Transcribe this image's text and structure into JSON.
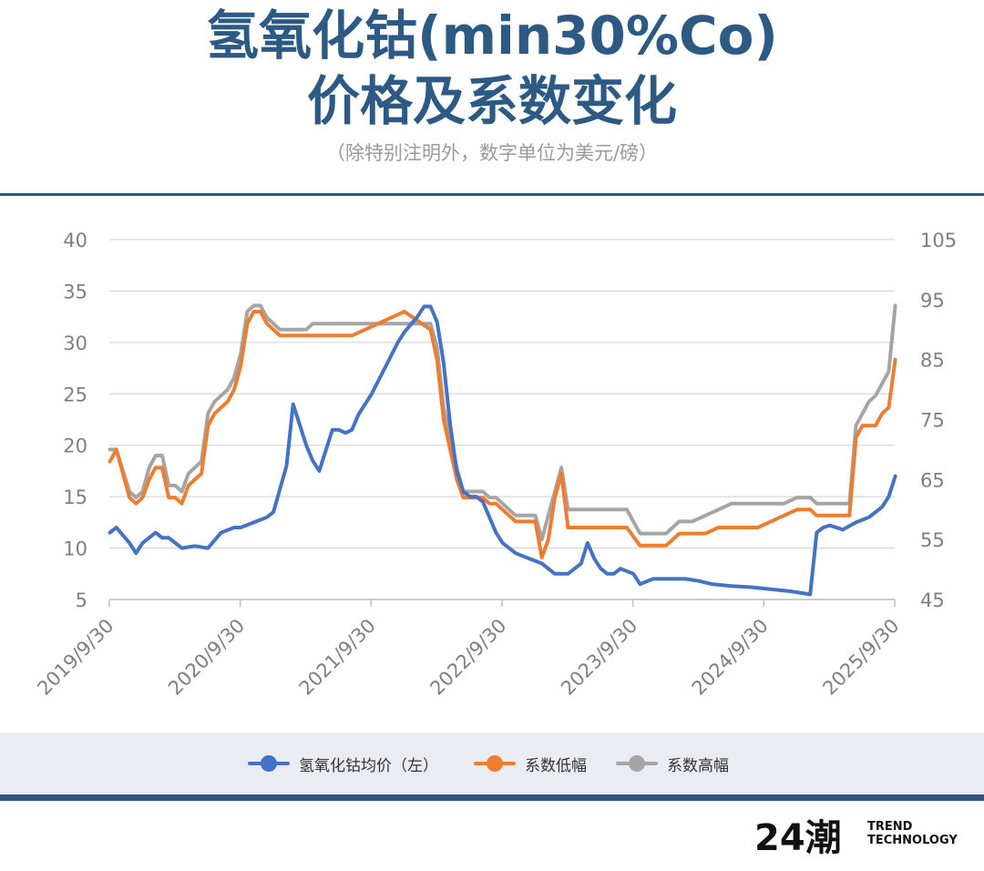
{
  "header": {
    "title_line1": "氢氧化钴(min30%Co)",
    "title_line2": "价格及系数变化",
    "subtitle": "（除特别注明外，数字单位为美元/磅）"
  },
  "brand": {
    "mark": "24潮",
    "line1": "TREND",
    "line2": "TECHNOLOGY"
  },
  "colors": {
    "accent": "#2f5780",
    "blue": "#4472c4",
    "orange": "#ed7d31",
    "gray": "#a5a5a5"
  },
  "chart_data": {
    "type": "line",
    "x_axis": {
      "tick_labels": [
        "2019/9/30",
        "2020/9/30",
        "2021/9/30",
        "2022/9/30",
        "2023/9/30",
        "2024/9/30",
        "2025/9/30"
      ],
      "range": [
        "2019/9/30",
        "2025/9/30"
      ]
    },
    "y_left": {
      "range": [
        5,
        40
      ],
      "ticks": [
        5,
        10,
        15,
        20,
        25,
        30,
        35,
        40
      ]
    },
    "y_right": {
      "range": [
        45,
        105
      ],
      "ticks": [
        45,
        55,
        65,
        75,
        85,
        95,
        105
      ]
    },
    "grid": "horizontal",
    "legend_position": "bottom",
    "series": [
      {
        "name": "氢氧化钴均价（左）",
        "axis": "left",
        "color": "#4472c4",
        "x": [
          2019.75,
          2019.8,
          2019.9,
          2019.95,
          2020.0,
          2020.1,
          2020.15,
          2020.2,
          2020.3,
          2020.4,
          2020.5,
          2020.6,
          2020.7,
          2020.75,
          2020.85,
          2020.95,
          2021.0,
          2021.1,
          2021.15,
          2021.2,
          2021.25,
          2021.3,
          2021.35,
          2021.45,
          2021.5,
          2021.55,
          2021.6,
          2021.65,
          2021.75,
          2021.85,
          2021.95,
          2022.0,
          2022.1,
          2022.15,
          2022.2,
          2022.25,
          2022.3,
          2022.35,
          2022.4,
          2022.45,
          2022.5,
          2022.55,
          2022.6,
          2022.65,
          2022.7,
          2022.75,
          2022.85,
          2022.95,
          2023.05,
          2023.15,
          2023.25,
          2023.35,
          2023.4,
          2023.45,
          2023.5,
          2023.55,
          2023.6,
          2023.65,
          2023.75,
          2023.8,
          2023.9,
          2023.95,
          2024.0,
          2024.05,
          2024.15,
          2024.25,
          2024.35,
          2024.5,
          2024.65,
          2024.8,
          2024.95,
          2025.1,
          2025.15,
          2025.2,
          2025.25,
          2025.3,
          2025.35,
          2025.45,
          2025.55,
          2025.65,
          2025.7,
          2025.75
        ],
        "values": [
          11.5,
          12.0,
          10.5,
          9.5,
          10.5,
          11.5,
          11.0,
          11.0,
          10.0,
          10.2,
          10.0,
          11.5,
          12.0,
          12.0,
          12.5,
          13.0,
          13.5,
          18.0,
          24.0,
          22.0,
          20.0,
          18.5,
          17.5,
          21.5,
          21.5,
          21.2,
          21.5,
          23.0,
          25.0,
          27.5,
          30.0,
          31.0,
          32.5,
          33.5,
          33.5,
          32.0,
          28.0,
          22.0,
          17.5,
          15.5,
          15.0,
          15.0,
          14.5,
          13.0,
          11.5,
          10.5,
          9.5,
          9.0,
          8.5,
          7.5,
          7.5,
          8.5,
          10.5,
          9.0,
          8.0,
          7.5,
          7.5,
          8.0,
          7.5,
          6.5,
          7.0,
          7.0,
          7.0,
          7.0,
          7.0,
          6.8,
          6.5,
          6.3,
          6.2,
          6.0,
          5.8,
          5.5,
          11.5,
          12.0,
          12.2,
          12.0,
          11.8,
          12.5,
          13.0,
          14.0,
          15.0,
          17.0
        ]
      },
      {
        "name": "系数低幅",
        "axis": "right",
        "color": "#ed7d31",
        "x": [
          2019.75,
          2019.8,
          2019.9,
          2019.95,
          2020.0,
          2020.05,
          2020.1,
          2020.15,
          2020.2,
          2020.25,
          2020.3,
          2020.35,
          2020.4,
          2020.45,
          2020.5,
          2020.55,
          2020.6,
          2020.65,
          2020.7,
          2020.75,
          2020.8,
          2020.85,
          2020.9,
          2020.95,
          2021.0,
          2021.05,
          2021.1,
          2021.15,
          2021.2,
          2021.25,
          2021.3,
          2021.35,
          2021.4,
          2021.5,
          2021.6,
          2021.7,
          2021.8,
          2021.9,
          2022.0,
          2022.2,
          2022.25,
          2022.3,
          2022.35,
          2022.4,
          2022.45,
          2022.5,
          2022.6,
          2022.65,
          2022.7,
          2022.75,
          2022.8,
          2022.85,
          2022.9,
          2023.0,
          2023.05,
          2023.1,
          2023.15,
          2023.2,
          2023.25,
          2023.3,
          2023.35,
          2023.4,
          2023.5,
          2023.6,
          2023.7,
          2023.8,
          2023.9,
          2024.0,
          2024.1,
          2024.2,
          2024.3,
          2024.4,
          2024.5,
          2024.6,
          2024.65,
          2024.7,
          2024.8,
          2024.9,
          2025.0,
          2025.05,
          2025.1,
          2025.15,
          2025.2,
          2025.3,
          2025.4,
          2025.45,
          2025.5,
          2025.55,
          2025.6,
          2025.65,
          2025.7,
          2025.75
        ],
        "values": [
          68,
          70,
          62,
          61,
          62,
          65,
          67,
          67,
          62,
          62,
          61,
          64,
          65,
          66,
          74,
          76,
          77,
          78,
          80,
          84,
          91,
          93,
          93,
          91,
          90,
          89,
          89,
          89,
          89,
          89,
          89,
          89,
          89,
          89,
          89,
          90,
          91,
          92,
          93,
          90,
          85,
          75,
          70,
          65,
          62,
          62,
          62,
          61,
          61,
          60,
          59,
          58,
          58,
          58,
          52,
          55,
          62,
          66,
          57,
          57,
          57,
          57,
          57,
          57,
          57,
          54,
          54,
          54,
          56,
          56,
          56,
          57,
          57,
          57,
          57,
          57,
          58,
          59,
          60,
          60,
          60,
          59,
          59,
          59,
          59,
          72,
          74,
          74,
          74,
          76,
          77,
          85
        ],
        "comment": "approximate shape"
      },
      {
        "name": "系数高幅",
        "axis": "right",
        "color": "#a5a5a5",
        "x": [
          2019.75,
          2019.8,
          2019.9,
          2019.95,
          2020.0,
          2020.05,
          2020.1,
          2020.15,
          2020.2,
          2020.25,
          2020.3,
          2020.35,
          2020.4,
          2020.45,
          2020.5,
          2020.55,
          2020.6,
          2020.65,
          2020.7,
          2020.75,
          2020.8,
          2020.85,
          2020.9,
          2020.95,
          2021.0,
          2021.05,
          2021.1,
          2021.15,
          2021.2,
          2021.25,
          2021.3,
          2021.35,
          2021.4,
          2021.5,
          2021.6,
          2021.7,
          2021.8,
          2021.9,
          2022.0,
          2022.2,
          2022.25,
          2022.3,
          2022.35,
          2022.4,
          2022.45,
          2022.5,
          2022.6,
          2022.65,
          2022.7,
          2022.75,
          2022.8,
          2022.85,
          2022.9,
          2023.0,
          2023.05,
          2023.1,
          2023.15,
          2023.2,
          2023.25,
          2023.3,
          2023.35,
          2023.4,
          2023.5,
          2023.6,
          2023.7,
          2023.8,
          2023.9,
          2024.0,
          2024.1,
          2024.2,
          2024.3,
          2024.4,
          2024.5,
          2024.6,
          2024.65,
          2024.7,
          2024.8,
          2024.9,
          2025.0,
          2025.05,
          2025.1,
          2025.15,
          2025.2,
          2025.3,
          2025.4,
          2025.45,
          2025.5,
          2025.55,
          2025.6,
          2025.65,
          2025.7,
          2025.75
        ],
        "values": [
          70,
          70,
          63,
          62,
          63,
          67,
          69,
          69,
          64,
          64,
          63,
          66,
          67,
          68,
          76,
          78,
          79,
          80,
          82,
          86,
          93,
          94,
          94,
          92,
          91,
          90,
          90,
          90,
          90,
          90,
          91,
          91,
          91,
          91,
          91,
          91,
          91,
          91,
          91,
          91,
          87,
          77,
          72,
          67,
          63,
          63,
          63,
          62,
          62,
          61,
          60,
          59,
          59,
          59,
          55,
          59,
          63,
          67,
          60,
          60,
          60,
          60,
          60,
          60,
          60,
          56,
          56,
          56,
          58,
          58,
          59,
          60,
          61,
          61,
          61,
          61,
          61,
          61,
          62,
          62,
          62,
          61,
          61,
          61,
          61,
          74,
          76,
          78,
          79,
          81,
          83,
          94
        ]
      }
    ]
  }
}
